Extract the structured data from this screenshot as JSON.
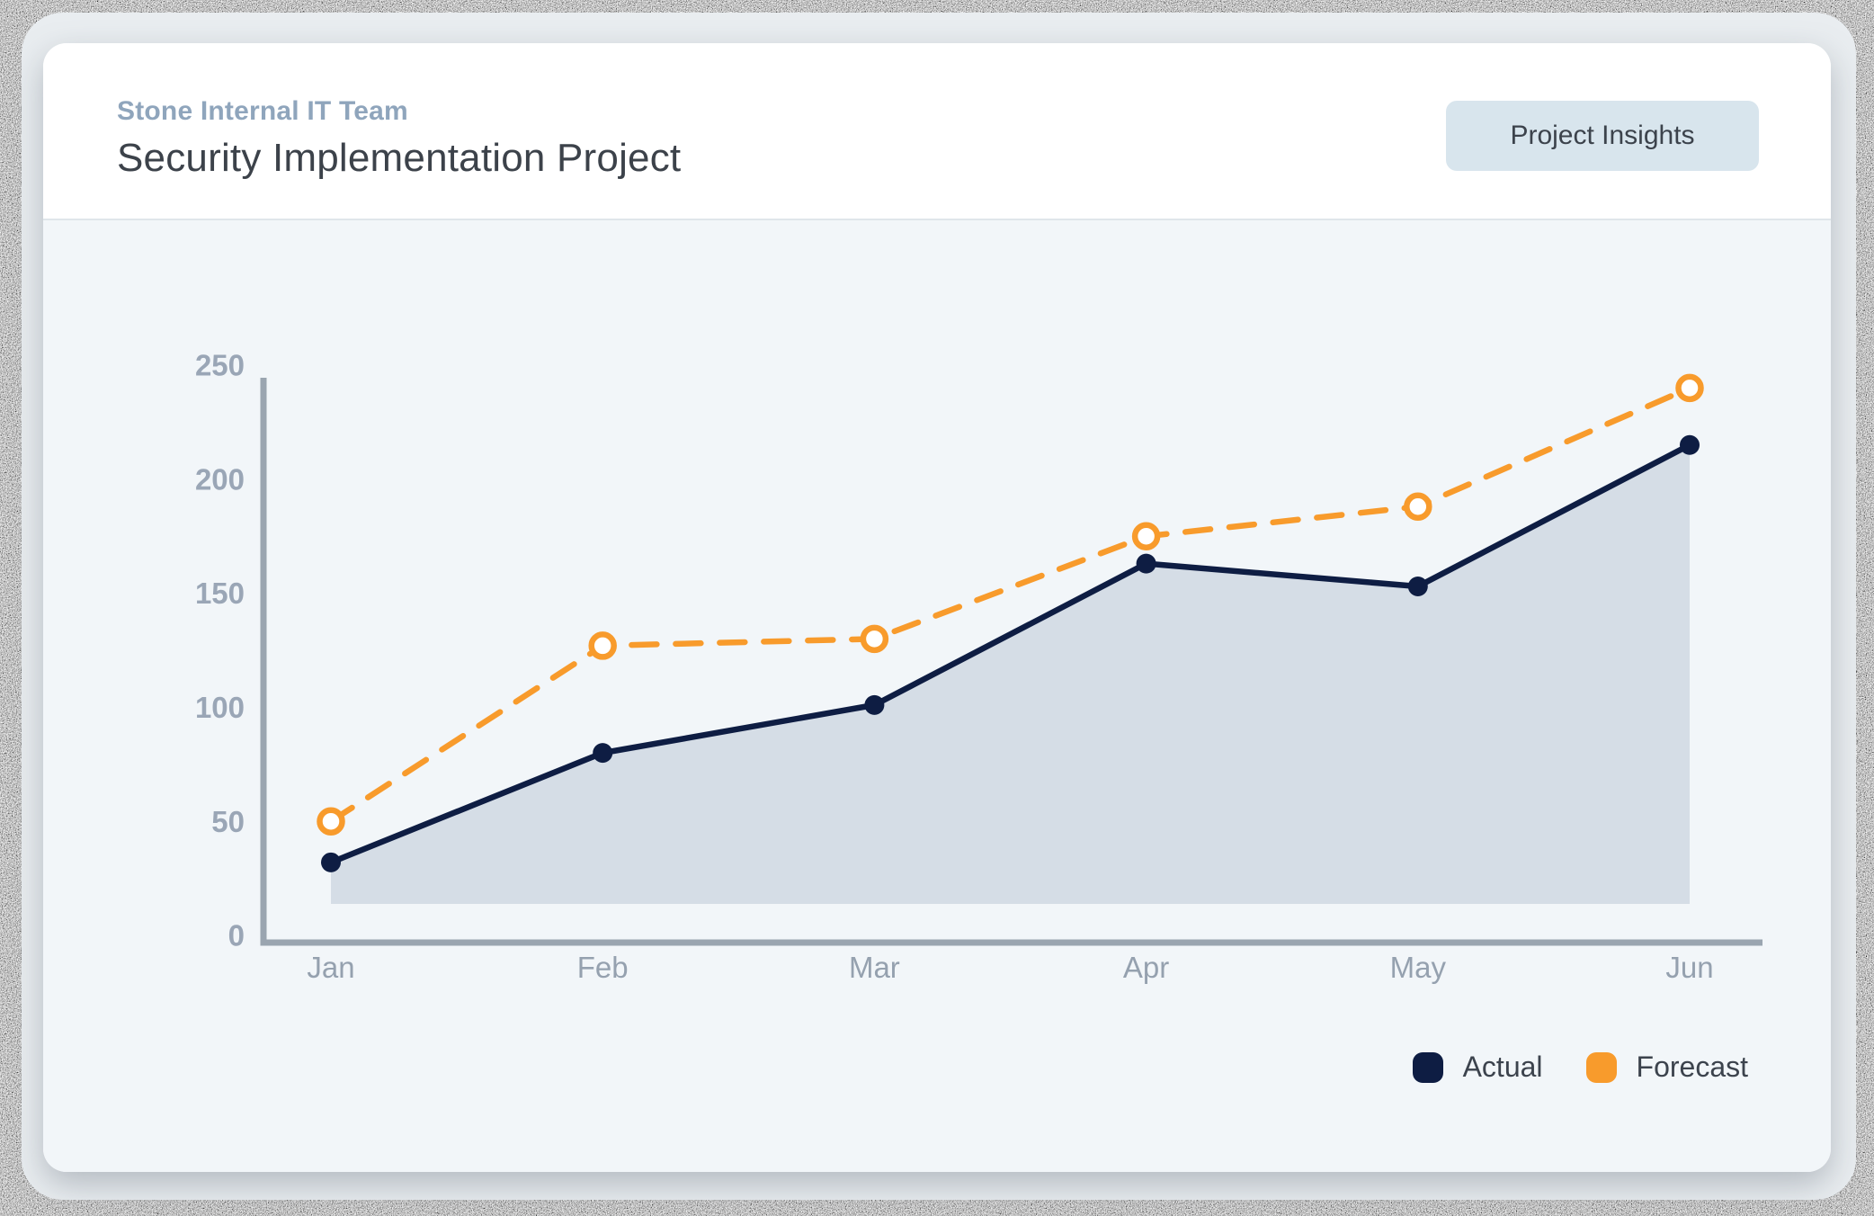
{
  "header": {
    "team_label": "Stone Internal IT Team",
    "title": "Security Implementation Project",
    "insights_button_label": "Project Insights"
  },
  "chart_data": {
    "type": "line",
    "categories": [
      "Jan",
      "Feb",
      "Mar",
      "Apr",
      "May",
      "Jun"
    ],
    "series": [
      {
        "name": "Actual",
        "values": [
          32,
          80,
          101,
          163,
          153,
          215
        ],
        "color": "#0e1d43",
        "line_style": "solid",
        "marker": "filled-dot",
        "area_fill": true
      },
      {
        "name": "Forecast",
        "values": [
          50,
          127,
          130,
          175,
          188,
          240
        ],
        "color": "#f89b2c",
        "line_style": "dashed",
        "marker": "open-circle",
        "area_fill": false
      }
    ],
    "yticks": [
      0,
      50,
      100,
      150,
      200,
      250
    ],
    "ylim": [
      0,
      250
    ],
    "xlabel": "",
    "ylabel": "",
    "grid": false,
    "legend_position": "bottom-right",
    "colors": {
      "axis": "#9aa5b0",
      "y_tick_label": "#9aa6b6",
      "x_tick_label": "#95a1af",
      "area": "#d5dde6",
      "chart_background": "#f2f6f9",
      "marker_open_fill": "#ffffff"
    }
  }
}
